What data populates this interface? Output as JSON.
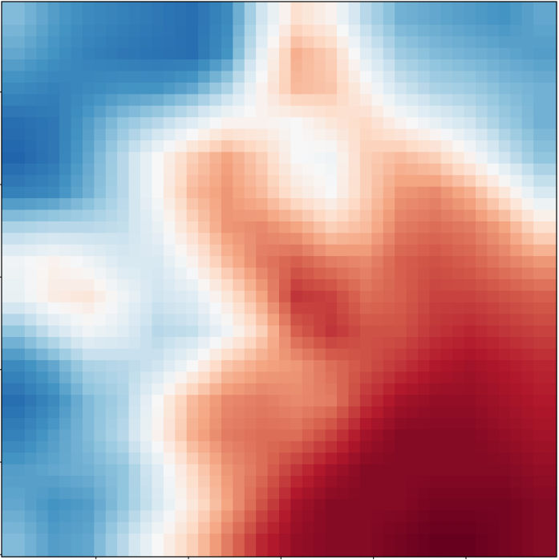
{
  "chart_data": {
    "type": "heatmap",
    "title": "",
    "xlabel": "",
    "ylabel": "",
    "colormap": "RdBu_r",
    "colors": {
      "low": "#053061",
      "high": "#67001f",
      "frame": "#000000"
    },
    "grid": false,
    "legend": "none",
    "x_ticks": 6,
    "y_ticks": 6,
    "interpolation": "bicubic",
    "value_range": [
      0,
      1
    ],
    "rows": 16,
    "cols": 16,
    "values": [
      [
        0.28,
        0.22,
        0.18,
        0.16,
        0.14,
        0.12,
        0.18,
        0.4,
        0.58,
        0.52,
        0.36,
        0.26,
        0.24,
        0.22,
        0.2,
        0.24
      ],
      [
        0.24,
        0.2,
        0.16,
        0.14,
        0.13,
        0.12,
        0.2,
        0.46,
        0.68,
        0.62,
        0.44,
        0.32,
        0.28,
        0.26,
        0.24,
        0.22
      ],
      [
        0.18,
        0.16,
        0.18,
        0.2,
        0.2,
        0.24,
        0.34,
        0.52,
        0.66,
        0.64,
        0.52,
        0.4,
        0.34,
        0.32,
        0.28,
        0.26
      ],
      [
        0.12,
        0.14,
        0.22,
        0.3,
        0.36,
        0.44,
        0.52,
        0.52,
        0.5,
        0.56,
        0.6,
        0.52,
        0.46,
        0.4,
        0.32,
        0.26
      ],
      [
        0.1,
        0.14,
        0.24,
        0.36,
        0.5,
        0.62,
        0.7,
        0.62,
        0.5,
        0.48,
        0.62,
        0.66,
        0.62,
        0.52,
        0.4,
        0.3
      ],
      [
        0.16,
        0.18,
        0.26,
        0.36,
        0.5,
        0.66,
        0.72,
        0.66,
        0.56,
        0.5,
        0.62,
        0.72,
        0.74,
        0.68,
        0.56,
        0.42
      ],
      [
        0.34,
        0.36,
        0.36,
        0.38,
        0.46,
        0.6,
        0.72,
        0.74,
        0.7,
        0.62,
        0.66,
        0.76,
        0.78,
        0.76,
        0.7,
        0.58
      ],
      [
        0.48,
        0.52,
        0.48,
        0.42,
        0.42,
        0.52,
        0.66,
        0.76,
        0.8,
        0.76,
        0.74,
        0.8,
        0.82,
        0.8,
        0.76,
        0.72
      ],
      [
        0.46,
        0.54,
        0.56,
        0.48,
        0.4,
        0.44,
        0.56,
        0.7,
        0.86,
        0.84,
        0.78,
        0.8,
        0.84,
        0.84,
        0.82,
        0.8
      ],
      [
        0.3,
        0.4,
        0.48,
        0.44,
        0.36,
        0.38,
        0.48,
        0.62,
        0.8,
        0.86,
        0.82,
        0.82,
        0.86,
        0.88,
        0.86,
        0.84
      ],
      [
        0.18,
        0.24,
        0.34,
        0.36,
        0.4,
        0.5,
        0.64,
        0.7,
        0.72,
        0.78,
        0.82,
        0.86,
        0.9,
        0.92,
        0.9,
        0.88
      ],
      [
        0.12,
        0.18,
        0.28,
        0.34,
        0.5,
        0.66,
        0.74,
        0.76,
        0.74,
        0.76,
        0.86,
        0.92,
        0.94,
        0.94,
        0.92,
        0.9
      ],
      [
        0.16,
        0.22,
        0.28,
        0.36,
        0.52,
        0.68,
        0.76,
        0.78,
        0.78,
        0.84,
        0.92,
        0.96,
        0.96,
        0.96,
        0.94,
        0.92
      ],
      [
        0.22,
        0.24,
        0.26,
        0.3,
        0.44,
        0.6,
        0.72,
        0.78,
        0.86,
        0.92,
        0.96,
        0.96,
        0.96,
        0.96,
        0.96,
        0.94
      ],
      [
        0.24,
        0.2,
        0.22,
        0.3,
        0.42,
        0.56,
        0.7,
        0.82,
        0.92,
        0.96,
        0.96,
        0.96,
        0.98,
        0.98,
        0.98,
        0.96
      ],
      [
        0.28,
        0.22,
        0.24,
        0.36,
        0.5,
        0.62,
        0.76,
        0.88,
        0.94,
        0.96,
        0.96,
        0.98,
        1.0,
        1.0,
        0.98,
        0.96
      ]
    ]
  }
}
